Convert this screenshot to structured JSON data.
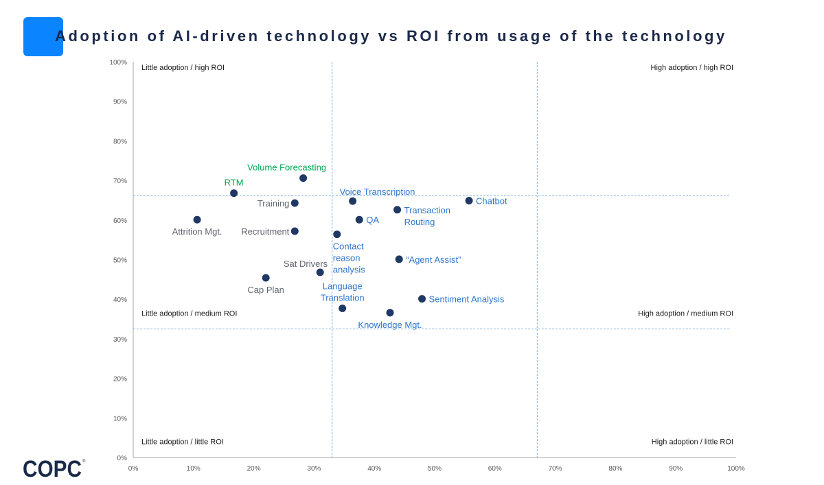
{
  "page_title": "Adoption of AI-driven technology vs ROI from usage of the technology",
  "colors": {
    "accent": "#0a84ff",
    "title": "#1b2a4a",
    "point": "#1f3864",
    "label_gray": "#5f6670",
    "label_green": "#00a651",
    "label_blue": "#2e75cc",
    "guide": "#5b9bd5",
    "axis": "#a6a6a6"
  },
  "logo_text": "COPC",
  "chart_data": {
    "type": "scatter",
    "title": "Adoption of AI-driven technology vs ROI from usage of the technology",
    "xlabel": "",
    "ylabel": "",
    "xlim": [
      0,
      100
    ],
    "ylim": [
      0,
      100
    ],
    "x_ticks": [
      "0%",
      "10%",
      "20%",
      "30%",
      "40%",
      "50%",
      "60%",
      "70%",
      "80%",
      "90%",
      "100%"
    ],
    "y_ticks": [
      "0%",
      "10%",
      "20%",
      "30%",
      "40%",
      "50%",
      "60%",
      "70%",
      "80%",
      "90%",
      "100%"
    ],
    "guide_lines": {
      "x": [
        33,
        67
      ],
      "y": [
        32.5,
        66.2
      ]
    },
    "quadrant_labels": [
      {
        "text": "Little adoption / high ROI",
        "corner": "top-left",
        "y": 100
      },
      {
        "text": "High adoption / high ROI",
        "corner": "top-right",
        "y": 100
      },
      {
        "text": "Little adoption / medium ROI",
        "corner": "left",
        "y": 36.5
      },
      {
        "text": "High adoption / medium ROI",
        "corner": "right",
        "y": 36.5
      },
      {
        "text": "Little adoption / little ROI",
        "corner": "bottom-left",
        "y": 3
      },
      {
        "text": "High adoption / little ROI",
        "corner": "bottom-right",
        "y": 3
      }
    ],
    "points": [
      {
        "name": "Volume Forecasting",
        "lines": [
          "Volume Forecasting"
        ],
        "x": 28.2,
        "y": 70.6,
        "color": "green",
        "label_pos": "above"
      },
      {
        "name": "RTM",
        "lines": [
          "RTM"
        ],
        "x": 16.7,
        "y": 66.8,
        "color": "green",
        "label_pos": "above"
      },
      {
        "name": "Training",
        "lines": [
          "Training"
        ],
        "x": 26.8,
        "y": 64.3,
        "color": "gray",
        "label_pos": "left"
      },
      {
        "name": "Attrition Mgt.",
        "lines": [
          "Attrition Mgt."
        ],
        "x": 10.6,
        "y": 60.1,
        "color": "gray",
        "label_pos": "below"
      },
      {
        "name": "Recruitment",
        "lines": [
          "Recruitment"
        ],
        "x": 26.8,
        "y": 57.2,
        "color": "gray",
        "label_pos": "left"
      },
      {
        "name": "Sat Drivers",
        "lines": [
          "Sat Drivers"
        ],
        "x": 31.0,
        "y": 46.8,
        "color": "gray",
        "label_pos": "above-left"
      },
      {
        "name": "Cap Plan",
        "lines": [
          "Cap Plan"
        ],
        "x": 22.0,
        "y": 45.4,
        "color": "gray",
        "label_pos": "below"
      },
      {
        "name": "Voice Transcription",
        "lines": [
          "Voice Transcription"
        ],
        "x": 36.4,
        "y": 64.8,
        "color": "blue",
        "label_pos": "above-right"
      },
      {
        "name": "Chatbot",
        "lines": [
          "Chatbot"
        ],
        "x": 55.7,
        "y": 64.9,
        "color": "blue",
        "label_pos": "right"
      },
      {
        "name": "Transaction Routing",
        "lines": [
          "Transaction",
          "Routing"
        ],
        "x": 43.8,
        "y": 62.6,
        "color": "blue",
        "label_pos": "right"
      },
      {
        "name": "QA",
        "lines": [
          "QA"
        ],
        "x": 37.5,
        "y": 60.1,
        "color": "blue",
        "label_pos": "right"
      },
      {
        "name": "Contact reason analysis",
        "lines": [
          "Contact",
          "reason",
          "analysis"
        ],
        "x": 33.8,
        "y": 56.4,
        "color": "blue",
        "label_pos": "below"
      },
      {
        "name": "Agent Assist",
        "lines": [
          "“Agent Assist”"
        ],
        "x": 44.1,
        "y": 50.1,
        "color": "blue",
        "label_pos": "right"
      },
      {
        "name": "Sentiment Analysis",
        "lines": [
          "Sentiment Analysis"
        ],
        "x": 47.9,
        "y": 40.1,
        "color": "blue",
        "label_pos": "right"
      },
      {
        "name": "Language Translation",
        "lines": [
          "Language",
          "Translation"
        ],
        "x": 34.7,
        "y": 37.7,
        "color": "blue",
        "label_pos": "above"
      },
      {
        "name": "Knowledge Mgt.",
        "lines": [
          "Knowledge Mgt."
        ],
        "x": 42.6,
        "y": 36.6,
        "color": "blue",
        "label_pos": "below"
      }
    ]
  }
}
